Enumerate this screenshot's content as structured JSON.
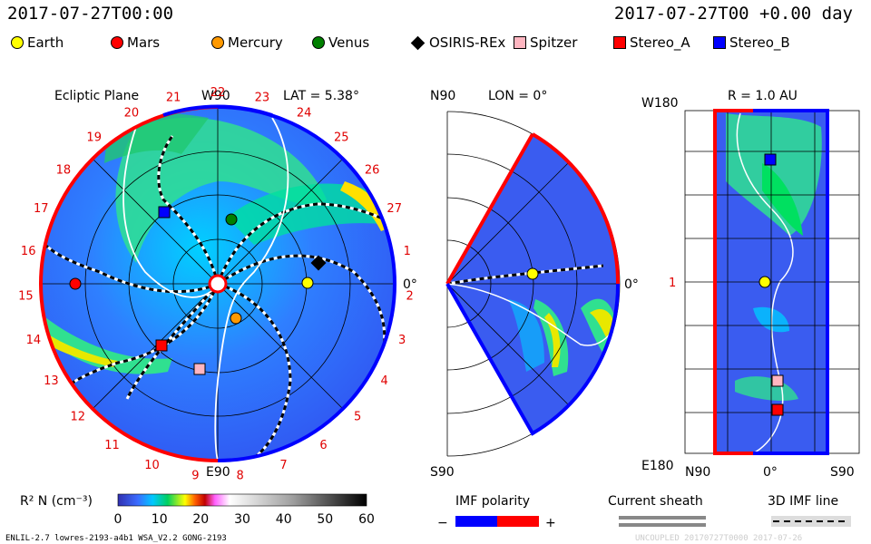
{
  "header": {
    "left_time": "2017-07-27T00:00",
    "right_time": "2017-07-27T00 +0.00 day"
  },
  "legend": [
    {
      "label": "Earth",
      "color": "#ffff00",
      "shape": "dot"
    },
    {
      "label": "Mars",
      "color": "#ff0000",
      "shape": "dot"
    },
    {
      "label": "Mercury",
      "color": "#ff9900",
      "shape": "dot"
    },
    {
      "label": "Venus",
      "color": "#008000",
      "shape": "dot"
    },
    {
      "label": "OSIRIS-REx",
      "color": "#000000",
      "shape": "diamond"
    },
    {
      "label": "Spitzer",
      "color": "#ffb6c1",
      "shape": "square"
    },
    {
      "label": "Stereo_A",
      "color": "#ff0000",
      "shape": "square"
    },
    {
      "label": "Stereo_B",
      "color": "#0000ff",
      "shape": "square"
    }
  ],
  "ecliptic": {
    "title": "Ecliptic Plane",
    "top_label": "W90",
    "bottom_label": "E90",
    "right_label": "0°",
    "lat": "LAT = 5.38°",
    "carrington": [
      "1",
      "2",
      "3",
      "4",
      "5",
      "6",
      "7",
      "8",
      "9",
      "10",
      "11",
      "12",
      "13",
      "14",
      "15",
      "16",
      "17",
      "18",
      "19",
      "20",
      "21",
      "22",
      "23",
      "24",
      "25",
      "26",
      "27"
    ]
  },
  "meridional": {
    "top_left": "N90",
    "lon": "LON = 0°",
    "bottom_left": "S90",
    "right_label": "0°"
  },
  "rmap": {
    "top_left": "W180",
    "r": "R = 1.0 AU",
    "bottom_left": "E180",
    "mid_left": "1",
    "x_labels": [
      "N90",
      "0°",
      "S90"
    ]
  },
  "colorbar": {
    "label": "R² N (cm⁻³)",
    "ticks": [
      "0",
      "10",
      "20",
      "30",
      "40",
      "50",
      "60"
    ]
  },
  "imf": {
    "title": "IMF polarity",
    "minus": "−",
    "plus": "+",
    "colors": [
      "#0000ff",
      "#ff0000"
    ]
  },
  "sheath": {
    "title": "Current sheath"
  },
  "imf3d": {
    "title": "3D IMF line"
  },
  "footer": {
    "left": "ENLIL-2.7 lowres-2193-a4b1 WSA_V2.2 GONG-2193",
    "right": "UNCOUPLED 20170727T0000 2017-07-26"
  }
}
